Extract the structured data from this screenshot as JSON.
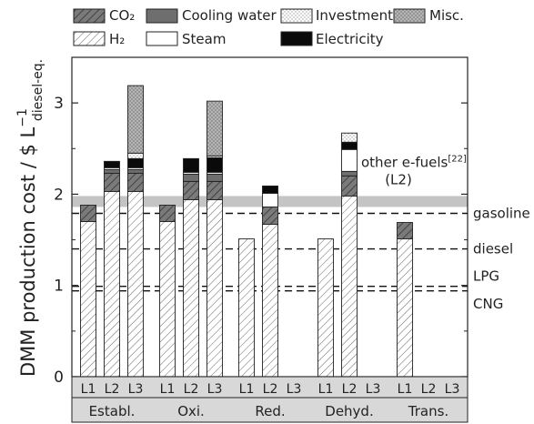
{
  "chart_data": {
    "type": "bar",
    "stacked": true,
    "ylabel_main": "DMM production cost  /  $ L",
    "ylabel_exp": "−1",
    "ylabel_sub": "diesel-eq.",
    "ylim": [
      0,
      3.5
    ],
    "yticks": [
      0,
      1,
      2,
      3
    ],
    "legend_placement": "top",
    "groups": [
      {
        "name": "Establ.",
        "bars": [
          "L1",
          "L2",
          "L3"
        ]
      },
      {
        "name": "Oxi.",
        "bars": [
          "L1",
          "L2",
          "L3"
        ]
      },
      {
        "name": "Red.",
        "bars": [
          "L1",
          "L2",
          "L3"
        ]
      },
      {
        "name": "Dehyd.",
        "bars": [
          "L1",
          "L2",
          "L3"
        ]
      },
      {
        "name": "Trans.",
        "bars": [
          "L1",
          "L2",
          "L3"
        ]
      }
    ],
    "series": [
      {
        "name": "H₂",
        "pattern": "hatch-light"
      },
      {
        "name": "CO₂",
        "pattern": "hatch-dark"
      },
      {
        "name": "Cooling water",
        "pattern": "dark"
      },
      {
        "name": "Steam",
        "pattern": "white"
      },
      {
        "name": "Electricity",
        "pattern": "black"
      },
      {
        "name": "Investment",
        "pattern": "dots-light"
      },
      {
        "name": "Misc.",
        "pattern": "dots-gray"
      }
    ],
    "values": [
      [
        [
          1.7,
          0.18,
          0,
          0,
          0,
          0,
          0
        ],
        [
          2.03,
          0.2,
          0.04,
          0.02,
          0.07,
          0,
          0
        ],
        [
          2.03,
          0.2,
          0.04,
          0.02,
          0.1,
          0.06,
          0.74
        ]
      ],
      [
        [
          1.7,
          0.18,
          0,
          0,
          0,
          0,
          0
        ],
        [
          1.94,
          0.2,
          0.08,
          0.02,
          0.15,
          0,
          0
        ],
        [
          1.94,
          0.2,
          0.08,
          0.02,
          0.16,
          0.02,
          0.6
        ]
      ],
      [
        [
          1.51,
          0,
          0,
          0,
          0,
          0,
          0
        ],
        [
          1.67,
          0.19,
          0,
          0.15,
          0.08,
          0,
          0
        ],
        null
      ],
      [
        [
          1.51,
          0,
          0,
          0,
          0,
          0,
          0
        ],
        [
          1.98,
          0.22,
          0.05,
          0.24,
          0.08,
          0.1,
          0
        ],
        null
      ],
      [
        [
          1.51,
          0.18,
          0,
          0,
          0,
          0,
          0
        ],
        null,
        null
      ]
    ],
    "reference_lines": [
      {
        "label": "gasoline",
        "value": 1.79
      },
      {
        "label": "diesel",
        "value": 1.4
      },
      {
        "label": "LPG",
        "value": 0.99
      },
      {
        "label": "CNG",
        "value": 0.94
      }
    ],
    "band": {
      "label": "other e-fuels",
      "ref": "[22]",
      "sublabel": "(L2)",
      "range": [
        1.86,
        1.98
      ]
    }
  }
}
